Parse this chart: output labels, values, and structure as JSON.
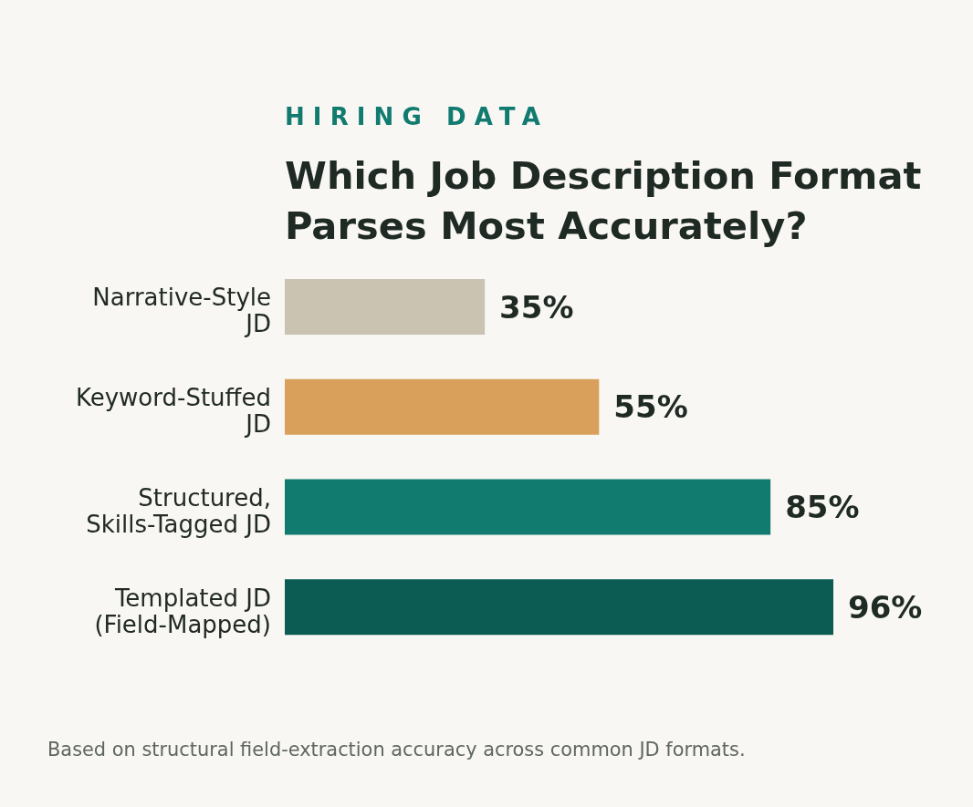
{
  "chart_data": {
    "type": "bar",
    "orientation": "horizontal",
    "subtitle": "HIRING DATA",
    "title": "Which Job Description Format Parses Most Accurately?",
    "categories": [
      "Narrative-Style JD",
      "Keyword-Stuffed JD",
      "Structured, Skills-Tagged JD",
      "Templated JD (Field-Mapped)"
    ],
    "values": [
      35,
      55,
      85,
      96
    ],
    "colors": [
      "#cac3b2",
      "#d9a05b",
      "#127b70",
      "#0d5c53"
    ],
    "value_labels": [
      "35%",
      "55%",
      "85%",
      "96%"
    ],
    "tick_labels": "y",
    "annotations": [
      "Based on structural field-extraction accuracy across common JD formats."
    ]
  }
}
